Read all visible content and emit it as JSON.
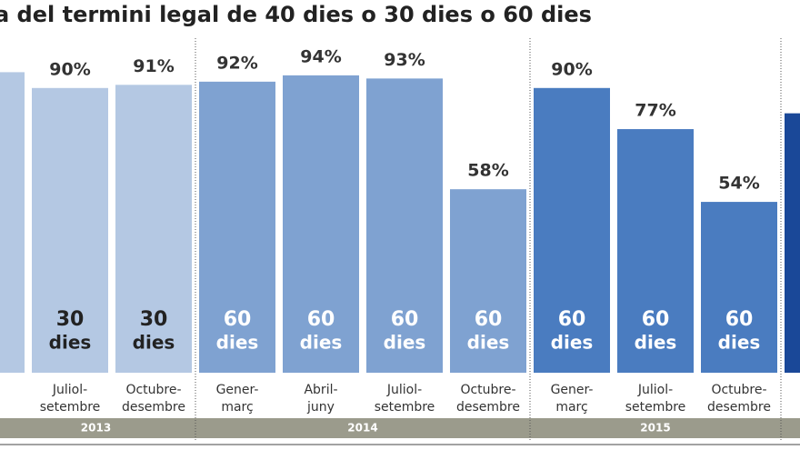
{
  "chart_data": {
    "type": "bar",
    "title": "a del termini legal de 40 dies o 30 dies o 60 dies",
    "categories": [
      null,
      [
        "Juliol-",
        "setembre"
      ],
      [
        "Octubre-",
        "desembre"
      ],
      [
        "Gener-",
        "març"
      ],
      [
        "Abril-",
        "juny"
      ],
      [
        "Juliol-",
        "setembre"
      ],
      [
        "Octubre-",
        "desembre"
      ],
      [
        "Gener-",
        "març"
      ],
      [
        "Juliol-",
        "setembre"
      ],
      [
        "Octubre-",
        "desembre"
      ],
      null
    ],
    "values": [
      95,
      90,
      91,
      92,
      94,
      93,
      58,
      90,
      77,
      54,
      82
    ],
    "value_labels": [
      null,
      "90%",
      "91%",
      "92%",
      "94%",
      "93%",
      "58%",
      "90%",
      "77%",
      "54%",
      null
    ],
    "deadline_days": [
      null,
      30,
      30,
      60,
      60,
      60,
      60,
      60,
      60,
      60,
      null
    ],
    "deadline_unit": "dies",
    "years": [
      "2013",
      "2013",
      "2013",
      "2014",
      "2014",
      "2014",
      "2014",
      "2015",
      "2015",
      "2015",
      null
    ],
    "year_colors": {
      "2013": "#b4c8e3",
      "2014": "#7fa2d1",
      "2015": "#4a7cc0"
    },
    "other_color": "#1a4898",
    "ylim": [
      0,
      100
    ]
  }
}
